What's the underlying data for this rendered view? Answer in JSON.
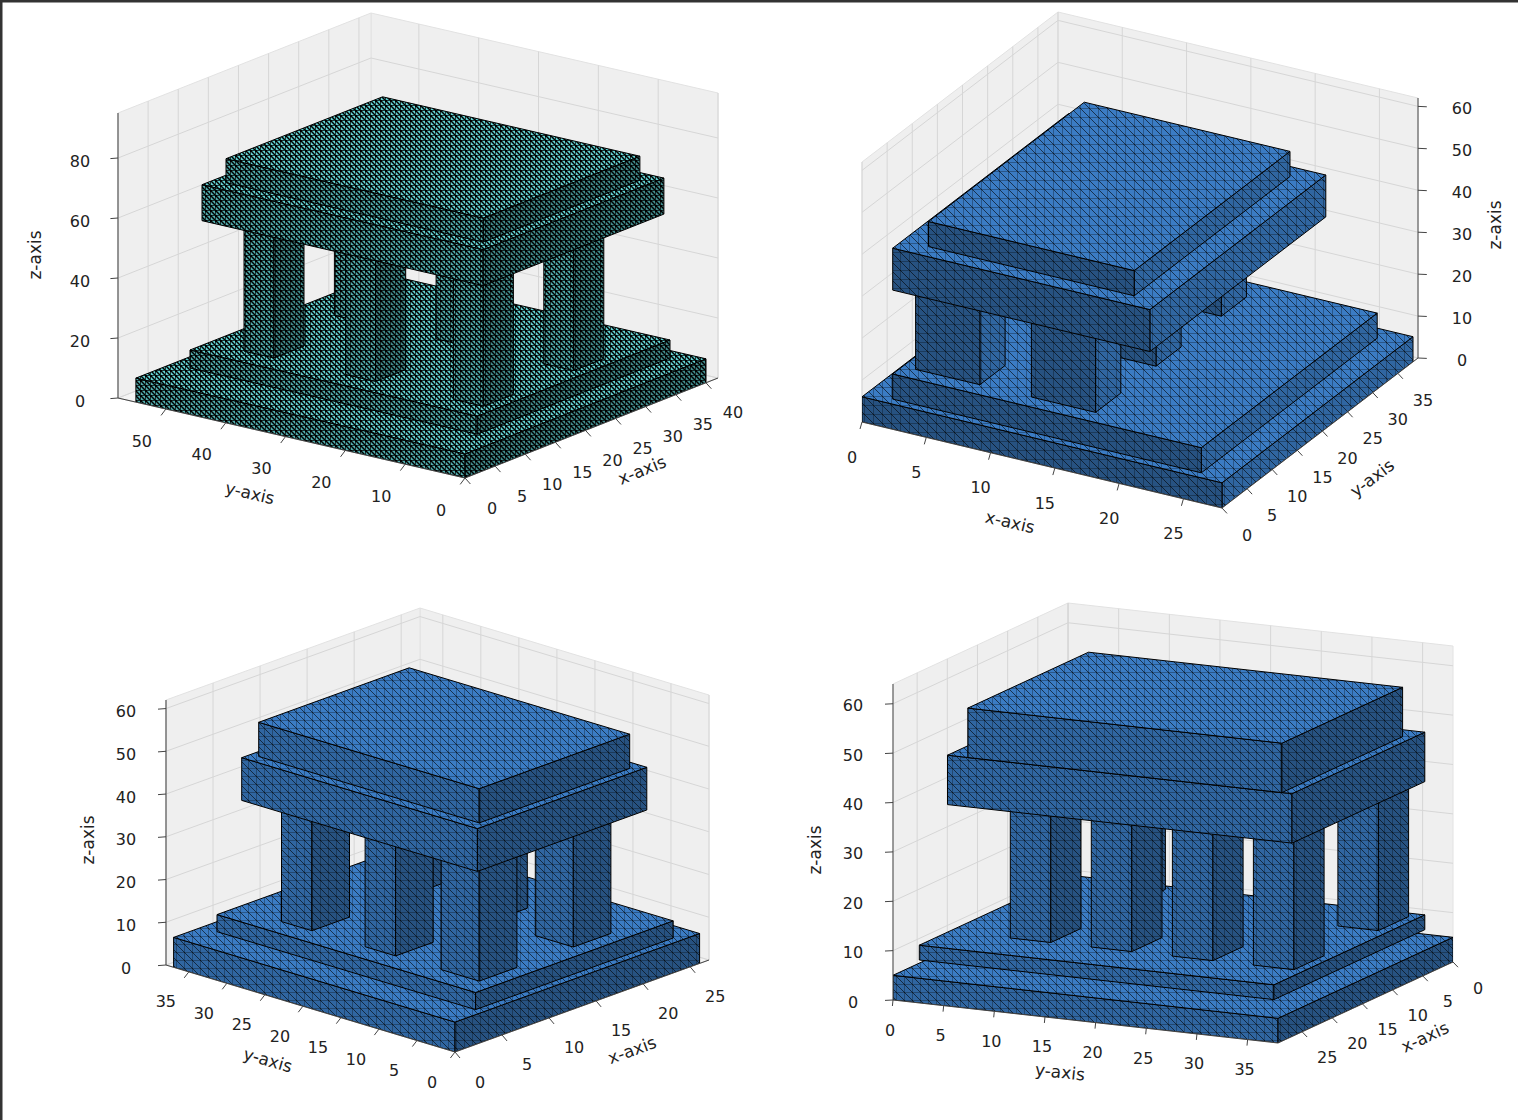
{
  "chart_data": [
    {
      "type": "mesh3d",
      "color": "#64d2d2",
      "grid": true,
      "xlabel": "x-axis",
      "ylabel": "y-axis",
      "zlabel": "z-axis",
      "xlim": [
        0,
        42
      ],
      "ylim": [
        0,
        58
      ],
      "zlim": [
        0,
        95
      ],
      "xticks": [
        0,
        5,
        10,
        15,
        20,
        25,
        30,
        35,
        40
      ],
      "yticks": [
        0,
        10,
        20,
        30,
        40,
        50
      ],
      "zticks": [
        0,
        20,
        40,
        60,
        80
      ],
      "boxes": [
        {
          "x": [
            0,
            40
          ],
          "y": [
            0,
            55
          ],
          "z": [
            0,
            8
          ]
        },
        {
          "x": [
            6,
            38
          ],
          "y": [
            4,
            52
          ],
          "z": [
            8,
            14
          ]
        },
        {
          "x": [
            9,
            14
          ],
          "y": [
            41,
            46
          ],
          "z": [
            14,
            58
          ]
        },
        {
          "x": [
            9,
            14
          ],
          "y": [
            24,
            29
          ],
          "z": [
            14,
            58
          ]
        },
        {
          "x": [
            9,
            14
          ],
          "y": [
            6,
            11
          ],
          "z": [
            14,
            58
          ]
        },
        {
          "x": [
            24,
            29
          ],
          "y": [
            6,
            11
          ],
          "z": [
            14,
            58
          ]
        },
        {
          "x": [
            24,
            29
          ],
          "y": [
            24,
            29
          ],
          "z": [
            14,
            58
          ]
        },
        {
          "x": [
            24,
            29
          ],
          "y": [
            41,
            46
          ],
          "z": [
            14,
            58
          ]
        },
        {
          "x": [
            6,
            36
          ],
          "y": [
            3,
            50
          ],
          "z": [
            58,
            70
          ]
        },
        {
          "x": [
            8,
            34
          ],
          "y": [
            5,
            48
          ],
          "z": [
            70,
            78
          ]
        }
      ]
    },
    {
      "type": "mesh3d",
      "color": "#3b7cc4",
      "grid": true,
      "xlabel": "x-axis",
      "ylabel": "y-axis",
      "zlabel": "z-axis",
      "xlim": [
        0,
        28
      ],
      "ylim": [
        0,
        39
      ],
      "zlim": [
        0,
        62
      ],
      "xticks": [
        0,
        5,
        10,
        15,
        20,
        25
      ],
      "yticks": [
        0,
        5,
        10,
        15,
        20,
        25,
        30,
        35
      ],
      "zticks": [
        0,
        10,
        20,
        30,
        40,
        50,
        60
      ],
      "boxes": [
        {
          "x": [
            0,
            28
          ],
          "y": [
            0,
            38
          ],
          "z": [
            0,
            6
          ]
        },
        {
          "x": [
            2,
            26
          ],
          "y": [
            1,
            36
          ],
          "z": [
            6,
            12
          ]
        },
        {
          "x": [
            3,
            8
          ],
          "y": [
            3,
            8
          ],
          "z": [
            12,
            32
          ]
        },
        {
          "x": [
            3,
            8
          ],
          "y": [
            28,
            33
          ],
          "z": [
            12,
            32
          ]
        },
        {
          "x": [
            12,
            17
          ],
          "y": [
            3,
            8
          ],
          "z": [
            12,
            32
          ]
        },
        {
          "x": [
            12,
            17
          ],
          "y": [
            15,
            20
          ],
          "z": [
            12,
            32
          ]
        },
        {
          "x": [
            12,
            17
          ],
          "y": [
            28,
            33
          ],
          "z": [
            12,
            32
          ]
        },
        {
          "x": [
            2,
            22
          ],
          "y": [
            1,
            36
          ],
          "z": [
            32,
            42
          ]
        },
        {
          "x": [
            4,
            20
          ],
          "y": [
            3,
            34
          ],
          "z": [
            42,
            48
          ]
        }
      ]
    },
    {
      "type": "mesh3d",
      "color": "#3b7cc4",
      "grid": true,
      "xlabel": "x-axis",
      "ylabel": "y-axis",
      "zlabel": "z-axis",
      "xlim": [
        0,
        27
      ],
      "ylim": [
        0,
        38
      ],
      "zlim": [
        0,
        62
      ],
      "xticks": [
        0,
        5,
        10,
        15,
        20,
        25
      ],
      "yticks": [
        0,
        5,
        10,
        15,
        20,
        25,
        30,
        35
      ],
      "zticks": [
        0,
        10,
        20,
        30,
        40,
        50,
        60
      ],
      "boxes": [
        {
          "x": [
            0,
            26
          ],
          "y": [
            0,
            37
          ],
          "z": [
            0,
            7
          ]
        },
        {
          "x": [
            3,
            24
          ],
          "y": [
            1,
            35
          ],
          "z": [
            7,
            11
          ]
        },
        {
          "x": [
            5,
            9
          ],
          "y": [
            25,
            29
          ],
          "z": [
            11,
            38
          ]
        },
        {
          "x": [
            5,
            9
          ],
          "y": [
            14,
            18
          ],
          "z": [
            11,
            38
          ]
        },
        {
          "x": [
            5,
            9
          ],
          "y": [
            3,
            8
          ],
          "z": [
            11,
            38
          ]
        },
        {
          "x": [
            15,
            19
          ],
          "y": [
            3,
            8
          ],
          "z": [
            11,
            38
          ]
        },
        {
          "x": [
            15,
            19
          ],
          "y": [
            14,
            18
          ],
          "z": [
            11,
            38
          ]
        },
        {
          "x": [
            15,
            19
          ],
          "y": [
            25,
            29
          ],
          "z": [
            11,
            38
          ]
        },
        {
          "x": [
            4,
            22
          ],
          "y": [
            2,
            33
          ],
          "z": [
            38,
            48
          ]
        },
        {
          "x": [
            5,
            21
          ],
          "y": [
            3,
            32
          ],
          "z": [
            48,
            56
          ]
        }
      ]
    },
    {
      "type": "mesh3d",
      "color": "#3b7cc4",
      "grid": true,
      "xlabel": "x-axis",
      "ylabel": "y-axis",
      "zlabel": "z-axis",
      "xlim": [
        0,
        29
      ],
      "ylim": [
        0,
        38
      ],
      "zlim": [
        0,
        64
      ],
      "xticks": [
        0,
        5,
        10,
        15,
        20,
        25
      ],
      "yticks": [
        0,
        5,
        10,
        15,
        20,
        25,
        30,
        35
      ],
      "zticks": [
        0,
        10,
        20,
        30,
        40,
        50,
        60
      ],
      "boxes": [
        {
          "x": [
            0,
            29
          ],
          "y": [
            0,
            38
          ],
          "z": [
            0,
            5
          ]
        },
        {
          "x": [
            3,
            28
          ],
          "y": [
            2,
            37
          ],
          "z": [
            8,
            11
          ]
        },
        {
          "x": [
            4,
            9
          ],
          "y": [
            8,
            12
          ],
          "z": [
            11,
            38
          ]
        },
        {
          "x": [
            4,
            9
          ],
          "y": [
            32,
            36
          ],
          "z": [
            11,
            38
          ]
        },
        {
          "x": [
            18,
            23
          ],
          "y": [
            8,
            12
          ],
          "z": [
            11,
            38
          ]
        },
        {
          "x": [
            18,
            23
          ],
          "y": [
            16,
            20
          ],
          "z": [
            11,
            38
          ]
        },
        {
          "x": [
            18,
            23
          ],
          "y": [
            24,
            28
          ],
          "z": [
            11,
            38
          ]
        },
        {
          "x": [
            18,
            23
          ],
          "y": [
            32,
            36
          ],
          "z": [
            11,
            38
          ]
        },
        {
          "x": [
            3,
            25
          ],
          "y": [
            3,
            37
          ],
          "z": [
            38,
            48
          ]
        },
        {
          "x": [
            5,
            25
          ],
          "y": [
            5,
            36
          ],
          "z": [
            48,
            58
          ]
        }
      ]
    }
  ]
}
